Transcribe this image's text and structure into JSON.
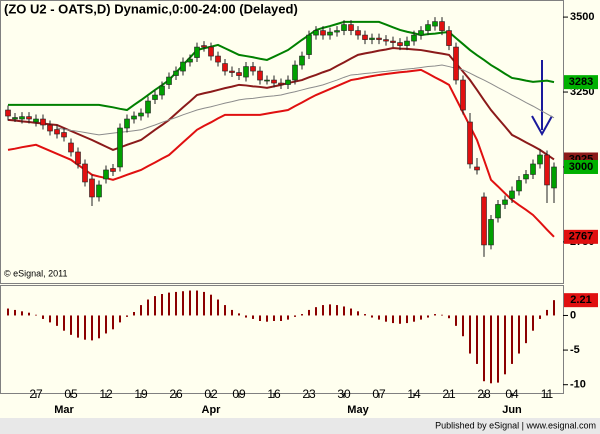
{
  "chart_data": [
    {
      "type": "candlestick",
      "title": "(ZO U2 - OATS,D) Dynamic,0:00-24:00 (Delayed)",
      "note": "© eSignal, 2011",
      "categories": [
        null,
        null,
        null,
        null,
        "27",
        null,
        null,
        null,
        null,
        "05",
        null,
        null,
        null,
        null,
        "12",
        null,
        null,
        null,
        null,
        "19",
        null,
        null,
        null,
        null,
        "26",
        null,
        null,
        null,
        null,
        "02",
        null,
        null,
        null,
        "09",
        null,
        null,
        null,
        null,
        "16",
        null,
        null,
        null,
        null,
        "23",
        null,
        null,
        null,
        null,
        "30",
        null,
        null,
        null,
        null,
        "07",
        null,
        null,
        null,
        null,
        "14",
        null,
        null,
        null,
        null,
        "21",
        null,
        null,
        null,
        null,
        "28",
        null,
        null,
        null,
        "04",
        null,
        null,
        null,
        null,
        "11",
        null
      ],
      "months": [
        "Mar",
        "Apr",
        "May",
        "Jun"
      ],
      "open": [
        3190,
        3160,
        3160,
        3168,
        3150,
        3160,
        3140,
        3125,
        3115,
        3080,
        3050,
        3010,
        2960,
        2900,
        2960,
        2995,
        3000,
        3130,
        3160,
        3170,
        3180,
        3225,
        3240,
        3275,
        3305,
        3320,
        3350,
        3365,
        3405,
        3400,
        3370,
        3345,
        3320,
        3315,
        3300,
        3335,
        3320,
        3290,
        3290,
        3280,
        3275,
        3290,
        3340,
        3375,
        3440,
        3455,
        3440,
        3450,
        3455,
        3475,
        3455,
        3440,
        3425,
        3430,
        3425,
        3420,
        3415,
        3405,
        3420,
        3440,
        3455,
        3470,
        3485,
        3455,
        3400,
        3290,
        3150,
        3000,
        2900,
        2740,
        2830,
        2875,
        2895,
        2920,
        2960,
        2975,
        3010,
        3040,
        2930
      ],
      "high": [
        3205,
        3180,
        3183,
        3183,
        3175,
        3175,
        3155,
        3140,
        3130,
        3095,
        3065,
        3025,
        2975,
        2955,
        3005,
        3010,
        3145,
        3175,
        3185,
        3195,
        3235,
        3255,
        3285,
        3315,
        3335,
        3365,
        3375,
        3415,
        3420,
        3415,
        3385,
        3360,
        3335,
        3330,
        3350,
        3350,
        3335,
        3305,
        3305,
        3295,
        3305,
        3355,
        3385,
        3455,
        3470,
        3470,
        3465,
        3470,
        3490,
        3490,
        3470,
        3455,
        3445,
        3445,
        3440,
        3435,
        3430,
        3435,
        3455,
        3470,
        3490,
        3500,
        3500,
        3470,
        3415,
        3305,
        3180,
        3030,
        2915,
        2840,
        2890,
        2905,
        2935,
        2970,
        2990,
        3025,
        3060,
        3055,
        3015
      ],
      "low": [
        3155,
        3150,
        3145,
        3145,
        3135,
        3125,
        3105,
        3095,
        3085,
        3035,
        2995,
        2935,
        2870,
        2885,
        2945,
        2970,
        2985,
        3115,
        3145,
        3155,
        3165,
        3210,
        3225,
        3260,
        3290,
        3305,
        3335,
        3350,
        3385,
        3355,
        3335,
        3305,
        3300,
        3290,
        3285,
        3305,
        3275,
        3275,
        3265,
        3260,
        3260,
        3275,
        3325,
        3360,
        3425,
        3425,
        3425,
        3435,
        3440,
        3440,
        3425,
        3410,
        3410,
        3410,
        3405,
        3400,
        3390,
        3390,
        3405,
        3425,
        3440,
        3455,
        3440,
        3390,
        3275,
        3175,
        2995,
        2975,
        2700,
        2725,
        2815,
        2860,
        2880,
        2905,
        2945,
        2960,
        2995,
        2880,
        2880
      ],
      "close": [
        3170,
        3165,
        3168,
        3160,
        3160,
        3140,
        3120,
        3110,
        3100,
        3050,
        3010,
        2950,
        2900,
        2940,
        2990,
        2985,
        3130,
        3160,
        3170,
        3180,
        3220,
        3240,
        3270,
        3300,
        3320,
        3350,
        3360,
        3400,
        3400,
        3370,
        3350,
        3320,
        3315,
        3305,
        3335,
        3320,
        3290,
        3290,
        3280,
        3275,
        3290,
        3340,
        3370,
        3440,
        3455,
        3440,
        3450,
        3455,
        3475,
        3455,
        3440,
        3425,
        3430,
        3425,
        3420,
        3415,
        3405,
        3420,
        3440,
        3455,
        3475,
        3485,
        3455,
        3405,
        3290,
        3190,
        3010,
        2990,
        2740,
        2825,
        2875,
        2890,
        2920,
        2955,
        2975,
        3010,
        3040,
        2940,
        3000
      ],
      "up_color": "#00a000",
      "down_color": "#e01010",
      "close_label_color": "#00b000",
      "series": [
        {
          "color": "#008000",
          "values": [
            3207,
            3207,
            3207,
            3207,
            3207,
            3207,
            3207,
            3207,
            3207,
            3207,
            3207,
            3207,
            3207,
            3207,
            3203,
            3199,
            3194,
            3190,
            3207,
            3223,
            3240,
            3257,
            3273,
            3290,
            3315,
            3340,
            3365,
            3390,
            3396,
            3401,
            3407,
            3396,
            3385,
            3374,
            3370,
            3366,
            3361,
            3357,
            3368,
            3379,
            3390,
            3407,
            3424,
            3440,
            3457,
            3464,
            3470,
            3477,
            3484,
            3484,
            3484,
            3484,
            3484,
            3484,
            3475,
            3466,
            3457,
            3451,
            3446,
            3440,
            3443,
            3445,
            3448,
            3450,
            3430,
            3410,
            3390,
            3373,
            3357,
            3340,
            3326,
            3311,
            3297,
            3293,
            3288,
            3284,
            3286,
            3288,
            3283
          ]
        },
        {
          "color": "#8b1a1a",
          "values": [
            3157,
            3155,
            3152,
            3150,
            3147,
            3145,
            3142,
            3140,
            3130,
            3120,
            3110,
            3100,
            3090,
            3079,
            3068,
            3057,
            3065,
            3074,
            3082,
            3090,
            3107,
            3124,
            3140,
            3157,
            3178,
            3199,
            3219,
            3240,
            3246,
            3251,
            3257,
            3263,
            3268,
            3274,
            3272,
            3269,
            3267,
            3264,
            3269,
            3274,
            3280,
            3285,
            3290,
            3299,
            3307,
            3316,
            3324,
            3337,
            3349,
            3362,
            3374,
            3379,
            3383,
            3388,
            3392,
            3397,
            3395,
            3394,
            3392,
            3390,
            3386,
            3382,
            3378,
            3374,
            3346,
            3318,
            3290,
            3257,
            3223,
            3190,
            3162,
            3135,
            3107,
            3095,
            3082,
            3070,
            3057,
            3041,
            3025
          ]
        },
        {
          "color": "#e01010",
          "values": [
            3057,
            3061,
            3066,
            3070,
            3074,
            3064,
            3054,
            3044,
            3034,
            3024,
            3007,
            2991,
            2974,
            2968,
            2963,
            2957,
            2965,
            2974,
            2982,
            2990,
            3003,
            3015,
            3028,
            3040,
            3061,
            3082,
            3103,
            3124,
            3137,
            3149,
            3162,
            3174,
            3174,
            3174,
            3174,
            3174,
            3174,
            3178,
            3182,
            3186,
            3190,
            3203,
            3215,
            3228,
            3240,
            3250,
            3260,
            3270,
            3280,
            3290,
            3294,
            3299,
            3303,
            3307,
            3310,
            3313,
            3316,
            3318,
            3321,
            3324,
            3312,
            3299,
            3287,
            3274,
            3228,
            3182,
            3136,
            3090,
            3024,
            2957,
            2935,
            2912,
            2890,
            2873,
            2857,
            2840,
            2816,
            2791,
            2767
          ]
        },
        {
          "color": "#8c8c8c",
          "values": [
            null,
            null,
            null,
            null,
            null,
            null,
            null,
            3130,
            3126,
            3122,
            3119,
            3115,
            3111,
            3107,
            3110,
            3113,
            3116,
            3118,
            3121,
            3124,
            3132,
            3140,
            3149,
            3157,
            3165,
            3174,
            3182,
            3190,
            3196,
            3201,
            3207,
            3213,
            3218,
            3224,
            3227,
            3229,
            3232,
            3235,
            3237,
            3240,
            3246,
            3251,
            3257,
            3263,
            3268,
            3274,
            3282,
            3290,
            3299,
            3307,
            3309,
            3312,
            3314,
            3317,
            3319,
            3322,
            3324,
            3327,
            3329,
            3332,
            3335,
            3337,
            3340,
            3335,
            3329,
            3324,
            3313,
            3301,
            3290,
            3278,
            3265,
            3253,
            3240,
            3228,
            3215,
            3203,
            3190,
            3177,
            3164
          ]
        }
      ],
      "ylim": [
        2613,
        3557
      ],
      "yticks": [
        3500,
        3250,
        3000,
        2750
      ]
    },
    {
      "type": "bar",
      "color": "#8b0000",
      "values": [
        1.0,
        0.8,
        0.6,
        0.4,
        0.1,
        -0.5,
        -1,
        -1.5,
        -2.2,
        -2.8,
        -3.2,
        -3.5,
        -3.6,
        -3.3,
        -2.6,
        -2,
        -1,
        -0.2,
        0.5,
        1.5,
        2.3,
        2.8,
        3.1,
        3.3,
        3.4,
        3.5,
        3.6,
        3.6,
        3.4,
        3,
        2.3,
        1.5,
        0.8,
        0.3,
        -0.3,
        -0.5,
        -0.8,
        -0.9,
        -0.8,
        -0.8,
        -0.6,
        -0.2,
        0.2,
        0.8,
        1.2,
        1.5,
        1.6,
        1.5,
        1.3,
        1.0,
        0.6,
        0.2,
        -0.3,
        -0.6,
        -0.9,
        -1.1,
        -1.2,
        -1.1,
        -0.9,
        -0.6,
        -0.3,
        0.2,
        0.1,
        -0.4,
        -1.5,
        -3,
        -5.5,
        -7,
        -9.5,
        -9.8,
        -9.7,
        -8.5,
        -7,
        -5.5,
        -4,
        -2.2,
        -0.5,
        0.8,
        2.21
      ],
      "label_color": "#e01010",
      "ylim": [
        -11.2,
        4.4
      ],
      "yticks": [
        0,
        -5,
        -10
      ]
    }
  ],
  "footer": "Published by eSignal | www.esignal.com"
}
